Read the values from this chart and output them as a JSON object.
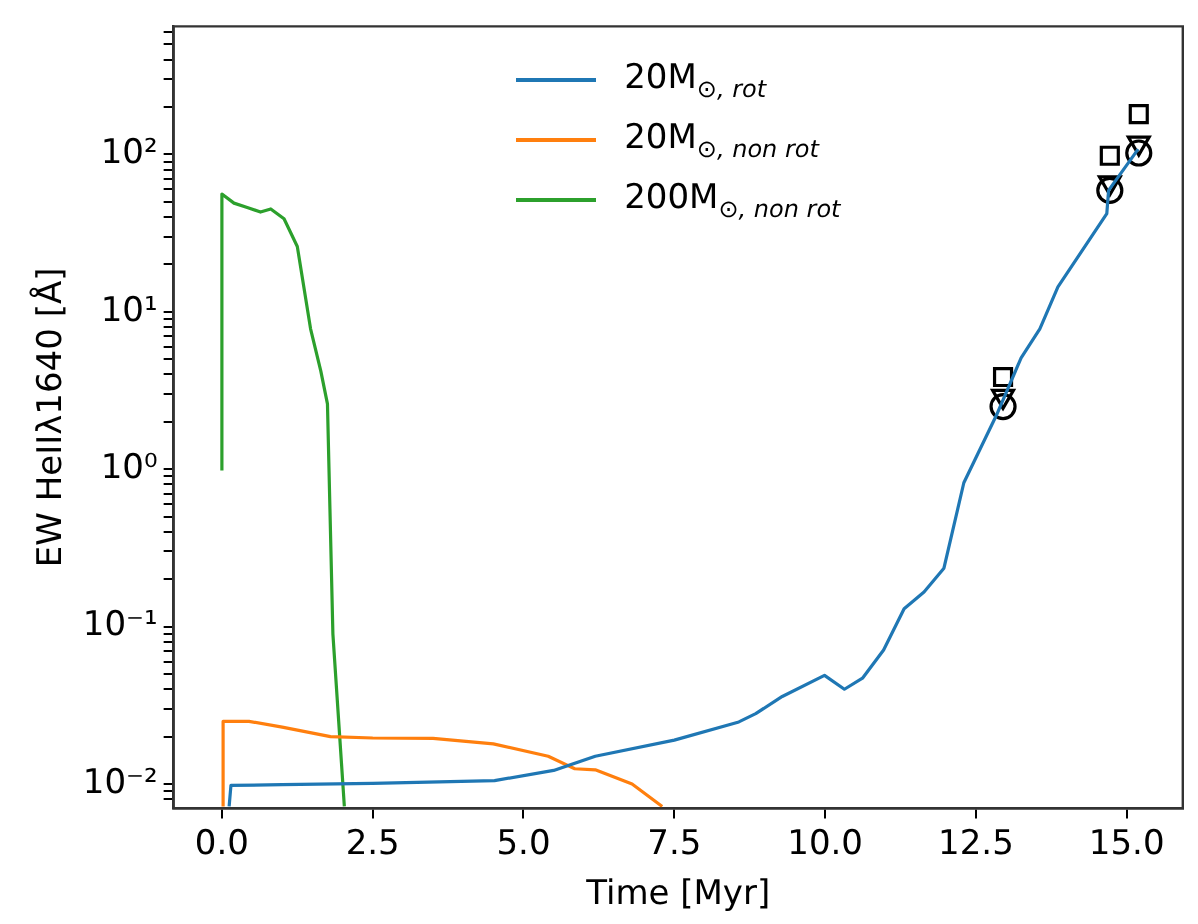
{
  "chart_data": {
    "type": "line",
    "xlabel": "Time [Myr]",
    "ylabel": "EW HeIIλ1640 [Å]",
    "log": "y",
    "legend": "top",
    "grid": false,
    "xlim": [
      -0.8,
      15.93
    ],
    "ylim": [
      0.007,
      650
    ],
    "xticks": [
      {
        "value": 0,
        "label": "0.0"
      },
      {
        "value": 2.5,
        "label": "2.5"
      },
      {
        "value": 5,
        "label": "5.0"
      },
      {
        "value": 7.5,
        "label": "7.5"
      },
      {
        "value": 10,
        "label": "10.0"
      },
      {
        "value": 12.5,
        "label": "12.5"
      },
      {
        "value": 15,
        "label": "15.0"
      }
    ],
    "yticks": [
      {
        "value": 0.008,
        "label": null
      },
      {
        "value": 0.009,
        "label": null
      },
      {
        "value": 0.01,
        "label": "10⁻²"
      },
      {
        "value": 0.02,
        "label": null
      },
      {
        "value": 0.03,
        "label": null
      },
      {
        "value": 0.04,
        "label": null
      },
      {
        "value": 0.05,
        "label": null
      },
      {
        "value": 0.06,
        "label": null
      },
      {
        "value": 0.07,
        "label": null
      },
      {
        "value": 0.08,
        "label": null
      },
      {
        "value": 0.09,
        "label": null
      },
      {
        "value": 0.1,
        "label": "10⁻¹"
      },
      {
        "value": 0.2,
        "label": null
      },
      {
        "value": 0.3,
        "label": null
      },
      {
        "value": 0.4,
        "label": null
      },
      {
        "value": 0.5,
        "label": null
      },
      {
        "value": 0.6,
        "label": null
      },
      {
        "value": 0.7,
        "label": null
      },
      {
        "value": 0.8,
        "label": null
      },
      {
        "value": 0.9,
        "label": null
      },
      {
        "value": 1,
        "label": "10⁰"
      },
      {
        "value": 2,
        "label": null
      },
      {
        "value": 3,
        "label": null
      },
      {
        "value": 4,
        "label": null
      },
      {
        "value": 5,
        "label": null
      },
      {
        "value": 6,
        "label": null
      },
      {
        "value": 7,
        "label": null
      },
      {
        "value": 8,
        "label": null
      },
      {
        "value": 9,
        "label": null
      },
      {
        "value": 10,
        "label": "10¹"
      },
      {
        "value": 20,
        "label": null
      },
      {
        "value": 30,
        "label": null
      },
      {
        "value": 40,
        "label": null
      },
      {
        "value": 50,
        "label": null
      },
      {
        "value": 60,
        "label": null
      },
      {
        "value": 70,
        "label": null
      },
      {
        "value": 80,
        "label": null
      },
      {
        "value": 90,
        "label": null
      },
      {
        "value": 100,
        "label": "10²"
      },
      {
        "value": 200,
        "label": null
      },
      {
        "value": 300,
        "label": null
      },
      {
        "value": 400,
        "label": null
      },
      {
        "value": 500,
        "label": null
      },
      {
        "value": 600,
        "label": null
      }
    ],
    "series": [
      {
        "name": "20M$_{⊙, rot}$",
        "color": "#1f77b4",
        "x": [
          0.12,
          0.15,
          1,
          2.5,
          4.52,
          5.5,
          6.19,
          7.5,
          8.57,
          8.85,
          9.29,
          9.99,
          10.32,
          10.62,
          10.97,
          11.31,
          11.64,
          11.97,
          12.3,
          12.53,
          12.84,
          13.25,
          13.56,
          13.86,
          14.67,
          14.7,
          15.19
        ],
        "values": [
          0.0072,
          0.0098,
          0.0099,
          0.0101,
          0.0105,
          0.0122,
          0.015,
          0.019,
          0.0248,
          0.028,
          0.036,
          0.049,
          0.04,
          0.047,
          0.071,
          0.13,
          0.166,
          0.235,
          0.82,
          1.25,
          2.2,
          5.1,
          7.8,
          14.4,
          42,
          59,
          108
        ]
      },
      {
        "name": "20M$_{⊙, non rot}$",
        "color": "#ff7f0e",
        "x": [
          0.02,
          0.02,
          0.45,
          1,
          1.8,
          2.5,
          3.5,
          4.5,
          5.41,
          5.85,
          6.19,
          6.8,
          7.3
        ],
        "values": [
          0.0072,
          0.025,
          0.025,
          0.023,
          0.02,
          0.0196,
          0.0195,
          0.018,
          0.015,
          0.0125,
          0.0123,
          0.01,
          0.0072
        ]
      },
      {
        "name": "200M$_{⊙, non rot}$",
        "color": "#2ca02c",
        "x": [
          0,
          0,
          0.2,
          0.42,
          0.64,
          0.81,
          1.03,
          1.25,
          1.47,
          1.64,
          1.75,
          1.84,
          2.03
        ],
        "values": [
          0.98,
          56,
          49,
          46,
          43,
          45,
          39,
          26,
          7.8,
          4.2,
          2.6,
          0.09,
          0.0072
        ]
      },
      {
        "type": "scatter",
        "marker": "square",
        "color": "#000000",
        "x": [
          12.95,
          14.72,
          15.2
        ],
        "values": [
          3.85,
          98,
          180
        ]
      },
      {
        "type": "scatter",
        "marker": "triangle",
        "color": "#000000",
        "x": [
          12.95,
          14.72,
          15.2
        ],
        "values": [
          2.9,
          66,
          118
        ]
      },
      {
        "type": "scatter",
        "marker": "circle",
        "color": "#000000",
        "x": [
          12.95,
          14.72,
          15.2
        ],
        "values": [
          2.5,
          59,
          102
        ]
      }
    ]
  }
}
